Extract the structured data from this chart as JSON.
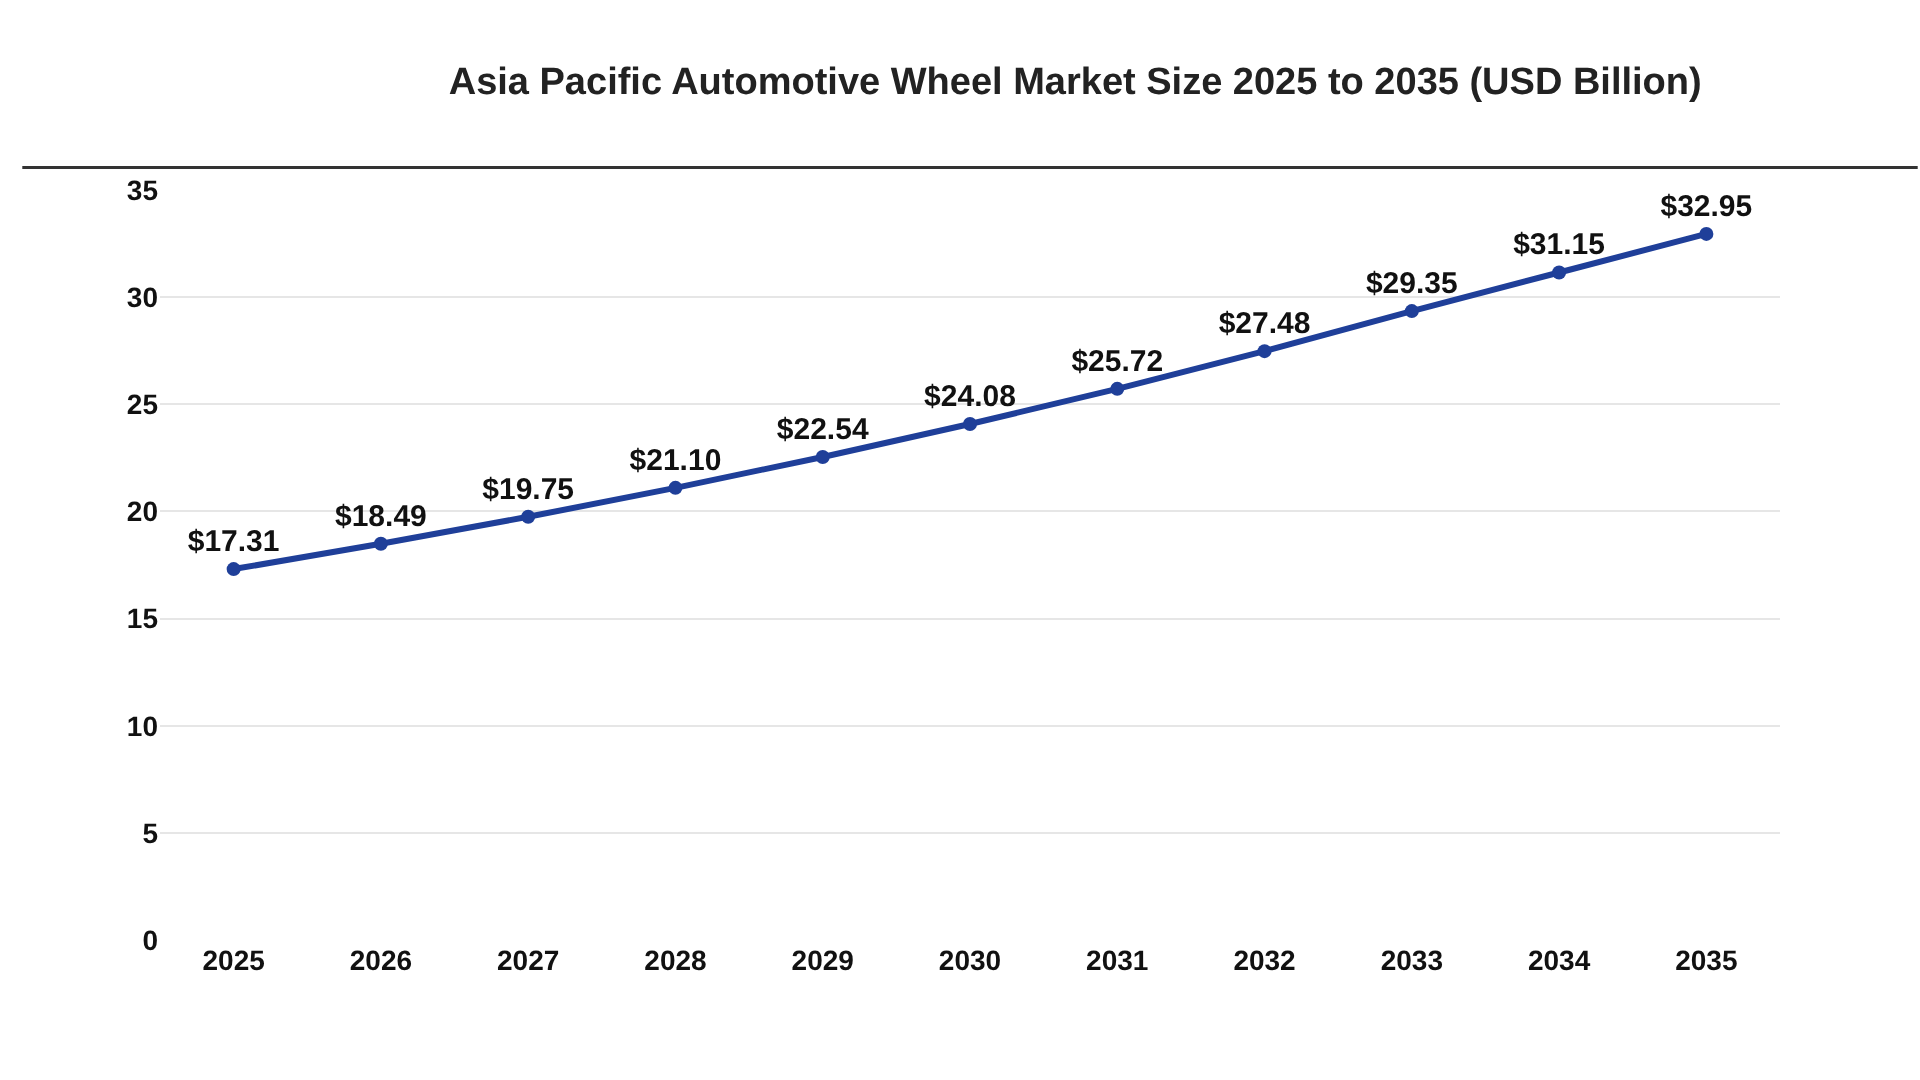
{
  "chart_data": {
    "type": "line",
    "title": "Asia Pacific Automotive Wheel Market Size 2025 to 2035 (USD Billion)",
    "categories": [
      "2025",
      "2026",
      "2027",
      "2028",
      "2029",
      "2030",
      "2031",
      "2032",
      "2033",
      "2034",
      "2035"
    ],
    "series": [
      {
        "color": "#1f3f99",
        "values": [
          17.31,
          18.49,
          19.75,
          21.1,
          22.54,
          24.08,
          25.72,
          27.48,
          29.35,
          31.15,
          32.95
        ],
        "value_labels": [
          "$17.31",
          "$18.49",
          "$19.75",
          "$21.10",
          "$22.54",
          "$24.08",
          "$25.72",
          "$27.48",
          "$29.35",
          "$31.15",
          "$32.95"
        ]
      }
    ],
    "ylim": [
      0,
      35
    ],
    "yticks": [
      0,
      5,
      10,
      15,
      20,
      25,
      30,
      35
    ],
    "grid": "y",
    "marker": "circle",
    "line_style": "solid"
  }
}
